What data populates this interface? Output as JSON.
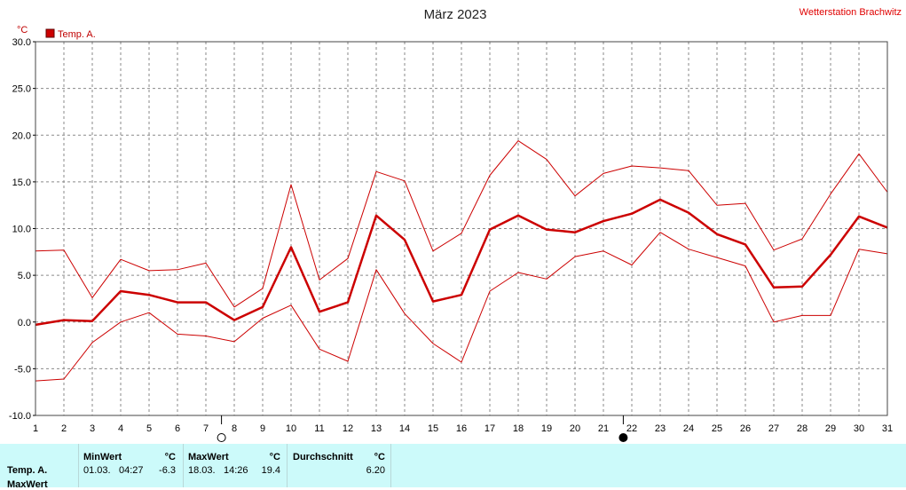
{
  "header": {
    "title": "März 2023",
    "station": "Wetterstation Brachwitz"
  },
  "chart_data": {
    "type": "line",
    "unit_label": "°C",
    "legend": [
      {
        "label": "Temp. A.",
        "color": "#cc0000"
      }
    ],
    "x": [
      1,
      2,
      3,
      4,
      5,
      6,
      7,
      8,
      9,
      10,
      11,
      12,
      13,
      14,
      15,
      16,
      17,
      18,
      19,
      20,
      21,
      22,
      23,
      24,
      25,
      26,
      27,
      28,
      29,
      30,
      31
    ],
    "xlim": [
      1,
      31
    ],
    "ylim": [
      -10,
      30
    ],
    "yticks": [
      "-10.0",
      "-5.0",
      "0.0",
      "5.0",
      "10.0",
      "15.0",
      "20.0",
      "25.0",
      "30.0"
    ],
    "series": [
      {
        "role": "avg",
        "color": "#cc0000",
        "values": [
          -0.3,
          0.2,
          0.1,
          3.3,
          2.9,
          2.1,
          2.1,
          0.2,
          1.6,
          8.0,
          1.1,
          2.1,
          11.4,
          8.8,
          2.2,
          2.9,
          9.9,
          11.4,
          9.9,
          9.6,
          10.8,
          11.6,
          13.1,
          11.7,
          9.4,
          8.3,
          3.7,
          3.8,
          7.2,
          11.3,
          10.1
        ]
      },
      {
        "role": "max",
        "color": "#cc0000",
        "values": [
          7.6,
          7.7,
          2.6,
          6.7,
          5.5,
          5.6,
          6.3,
          1.6,
          3.6,
          14.7,
          4.5,
          6.8,
          16.1,
          15.1,
          7.6,
          9.5,
          15.7,
          19.4,
          17.4,
          13.5,
          15.9,
          16.7,
          16.5,
          16.2,
          12.5,
          12.7,
          7.7,
          8.9,
          13.7,
          18.0,
          13.9
        ]
      },
      {
        "role": "min",
        "color": "#cc0000",
        "values": [
          -6.3,
          -6.1,
          -2.2,
          0.0,
          1.0,
          -1.3,
          -1.5,
          -2.1,
          0.4,
          1.8,
          -2.9,
          -4.2,
          5.6,
          0.9,
          -2.3,
          -4.3,
          3.3,
          5.3,
          4.6,
          7.0,
          7.6,
          6.1,
          9.6,
          7.8,
          6.9,
          6.0,
          0.0,
          0.7,
          0.7,
          7.8,
          7.3
        ]
      }
    ],
    "moon_markers": [
      {
        "day": 7.55,
        "phase": "full"
      },
      {
        "day": 21.7,
        "phase": "new"
      }
    ],
    "grid": true
  },
  "stats": {
    "row_label": "Temp. A.",
    "row_label_2": "MaxWert",
    "min": {
      "header": "MinWert",
      "unit": "°C",
      "date": "01.03.",
      "time": "04:27",
      "value": "-6.3"
    },
    "max": {
      "header": "MaxWert",
      "unit": "°C",
      "date": "18.03.",
      "time": "14:26",
      "value": "19.4"
    },
    "avg": {
      "header": "Durchschnitt",
      "unit": "°C",
      "value": "6.20"
    }
  }
}
